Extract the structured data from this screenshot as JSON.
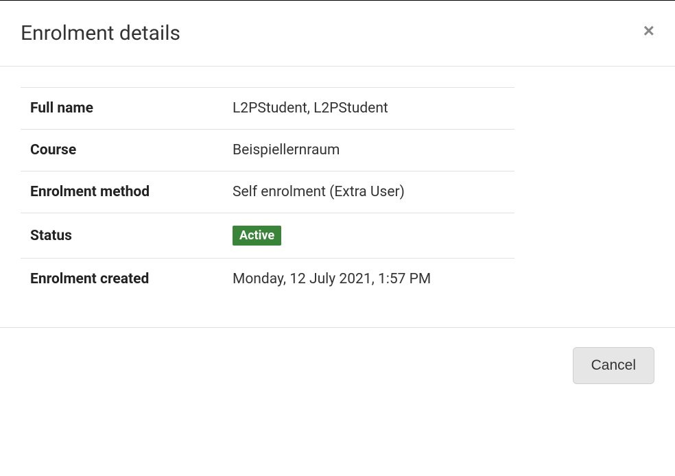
{
  "modal": {
    "title": "Enrolment details",
    "close_icon": "×",
    "footer": {
      "cancel_label": "Cancel"
    },
    "rows": [
      {
        "label": "Full name",
        "value": "L2PStudent, L2PStudent",
        "is_badge": false
      },
      {
        "label": "Course",
        "value": "Beispiellernraum",
        "is_badge": false
      },
      {
        "label": "Enrolment method",
        "value": "Self enrolment (Extra User)",
        "is_badge": false
      },
      {
        "label": "Status",
        "value": "Active",
        "is_badge": true,
        "badge_bg": "#398439",
        "badge_fg": "#ffffff"
      },
      {
        "label": "Enrolment created",
        "value": "Monday, 12 July 2021, 1:57 PM",
        "is_badge": false
      }
    ]
  },
  "colors": {
    "border": "#dee2e6",
    "text": "#333333",
    "label_text": "#222222",
    "close_icon": "#888888",
    "cancel_bg": "#e6e6e6"
  }
}
